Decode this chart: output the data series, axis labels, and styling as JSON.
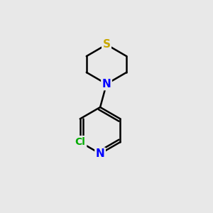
{
  "background_color": "#e8e8e8",
  "bond_color": "#000000",
  "S_color": "#c8a800",
  "N_color": "#0000ff",
  "Cl_color": "#00aa00",
  "S_label": "S",
  "N_label": "N",
  "Cl_label": "Cl",
  "figsize": [
    3.0,
    3.0
  ],
  "dpi": 100
}
